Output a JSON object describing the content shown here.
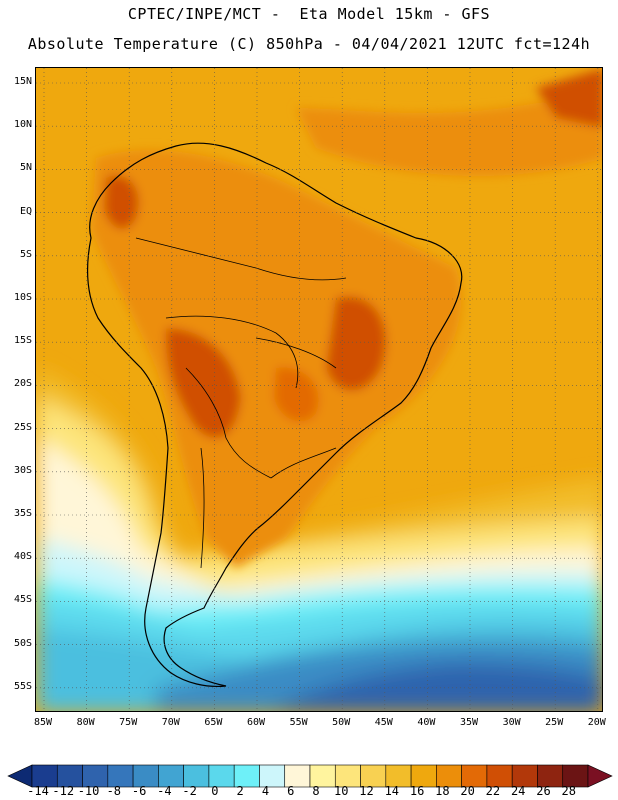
{
  "header": {
    "line1": "CPTEC/INPE/MCT -  Eta Model 15km - GFS",
    "line2": "Absolute Temperature (C) 850hPa - 04/04/2021 12UTC fct=124h"
  },
  "map": {
    "lat_labels": [
      "15N",
      "10N",
      "5N",
      "EQ",
      "5S",
      "10S",
      "15S",
      "20S",
      "25S",
      "30S",
      "35S",
      "40S",
      "45S",
      "50S",
      "55S"
    ],
    "lon_labels": [
      "85W",
      "80W",
      "75W",
      "70W",
      "65W",
      "60W",
      "55W",
      "50W",
      "45W",
      "40W",
      "35W",
      "30W",
      "25W",
      "20W"
    ]
  },
  "colorbar": {
    "labels": [
      "-14",
      "-12",
      "-10",
      "-8",
      "-6",
      "-4",
      "-2",
      "0",
      "2",
      "4",
      "6",
      "8",
      "10",
      "12",
      "14",
      "16",
      "18",
      "20",
      "22",
      "24",
      "26",
      "28"
    ],
    "colors": [
      "#1a3d8f",
      "#25519e",
      "#2f63ad",
      "#3576bb",
      "#3a8cc5",
      "#41a4d2",
      "#4bbfdf",
      "#5bd8ec",
      "#6ef0f8",
      "#cdf6fb",
      "#fff6d8",
      "#fff49e",
      "#fde57b",
      "#f8d152",
      "#f2bd2a",
      "#efa80e",
      "#ec8e0a",
      "#e36a06",
      "#d04f05",
      "#b2380a",
      "#8e2410",
      "#6b1414"
    ],
    "under_color": "#0d2a73",
    "over_color": "#7a1022"
  }
}
